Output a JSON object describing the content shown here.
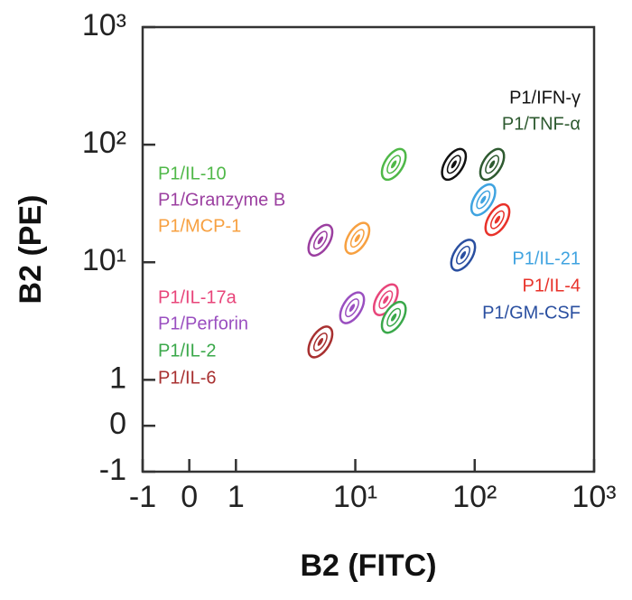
{
  "chart_data": {
    "type": "scatter",
    "x_label": "B2 (FITC)",
    "y_label": "B2 (PE)",
    "scale": "biexponential",
    "xlim": [
      -1,
      1000
    ],
    "ylim": [
      -1,
      1000
    ],
    "xticks": [
      -1,
      0,
      1,
      {
        "value": 10,
        "label": "10¹"
      },
      {
        "value": 100,
        "label": "10²"
      },
      {
        "value": 1000,
        "label": "10³"
      }
    ],
    "yticks": [
      -1,
      0,
      1,
      {
        "value": 10,
        "label": "10¹"
      },
      {
        "value": 100,
        "label": "10²"
      },
      {
        "value": 1000,
        "label": "10³"
      }
    ],
    "series": [
      {
        "name": "P1/IFN-γ",
        "color": "#111111",
        "x": [
          67
        ],
        "y": [
          68
        ]
      },
      {
        "name": "P1/TNF-α",
        "color": "#2e5a30",
        "x": [
          140
        ],
        "y": [
          68
        ]
      },
      {
        "name": "P1/IL-10",
        "color": "#4fb848",
        "x": [
          21
        ],
        "y": [
          68
        ]
      },
      {
        "name": "P1/Granzyme B",
        "color": "#9b3fa0",
        "x": [
          5.1
        ],
        "y": [
          15.4
        ]
      },
      {
        "name": "P1/MCP-1",
        "color": "#f7a040",
        "x": [
          10.4
        ],
        "y": [
          16
        ]
      },
      {
        "name": "P1/IL-21",
        "color": "#3fa3e0",
        "x": [
          118
        ],
        "y": [
          34
        ]
      },
      {
        "name": "P1/IL-4",
        "color": "#e8322a",
        "x": [
          155
        ],
        "y": [
          23
        ]
      },
      {
        "name": "P1/GM-CSF",
        "color": "#2a4fa0",
        "x": [
          80
        ],
        "y": [
          11.5
        ]
      },
      {
        "name": "P1/IL-17a",
        "color": "#e8457a",
        "x": [
          18
        ],
        "y": [
          4.8
        ]
      },
      {
        "name": "P1/Perforin",
        "color": "#9a4fc0",
        "x": [
          9.4
        ],
        "y": [
          4.1
        ]
      },
      {
        "name": "P1/IL-2",
        "color": "#3aa84a",
        "x": [
          21
        ],
        "y": [
          3.4
        ]
      },
      {
        "name": "P1/IL-6",
        "color": "#a83030",
        "x": [
          5.1
        ],
        "y": [
          2.1
        ]
      }
    ]
  }
}
